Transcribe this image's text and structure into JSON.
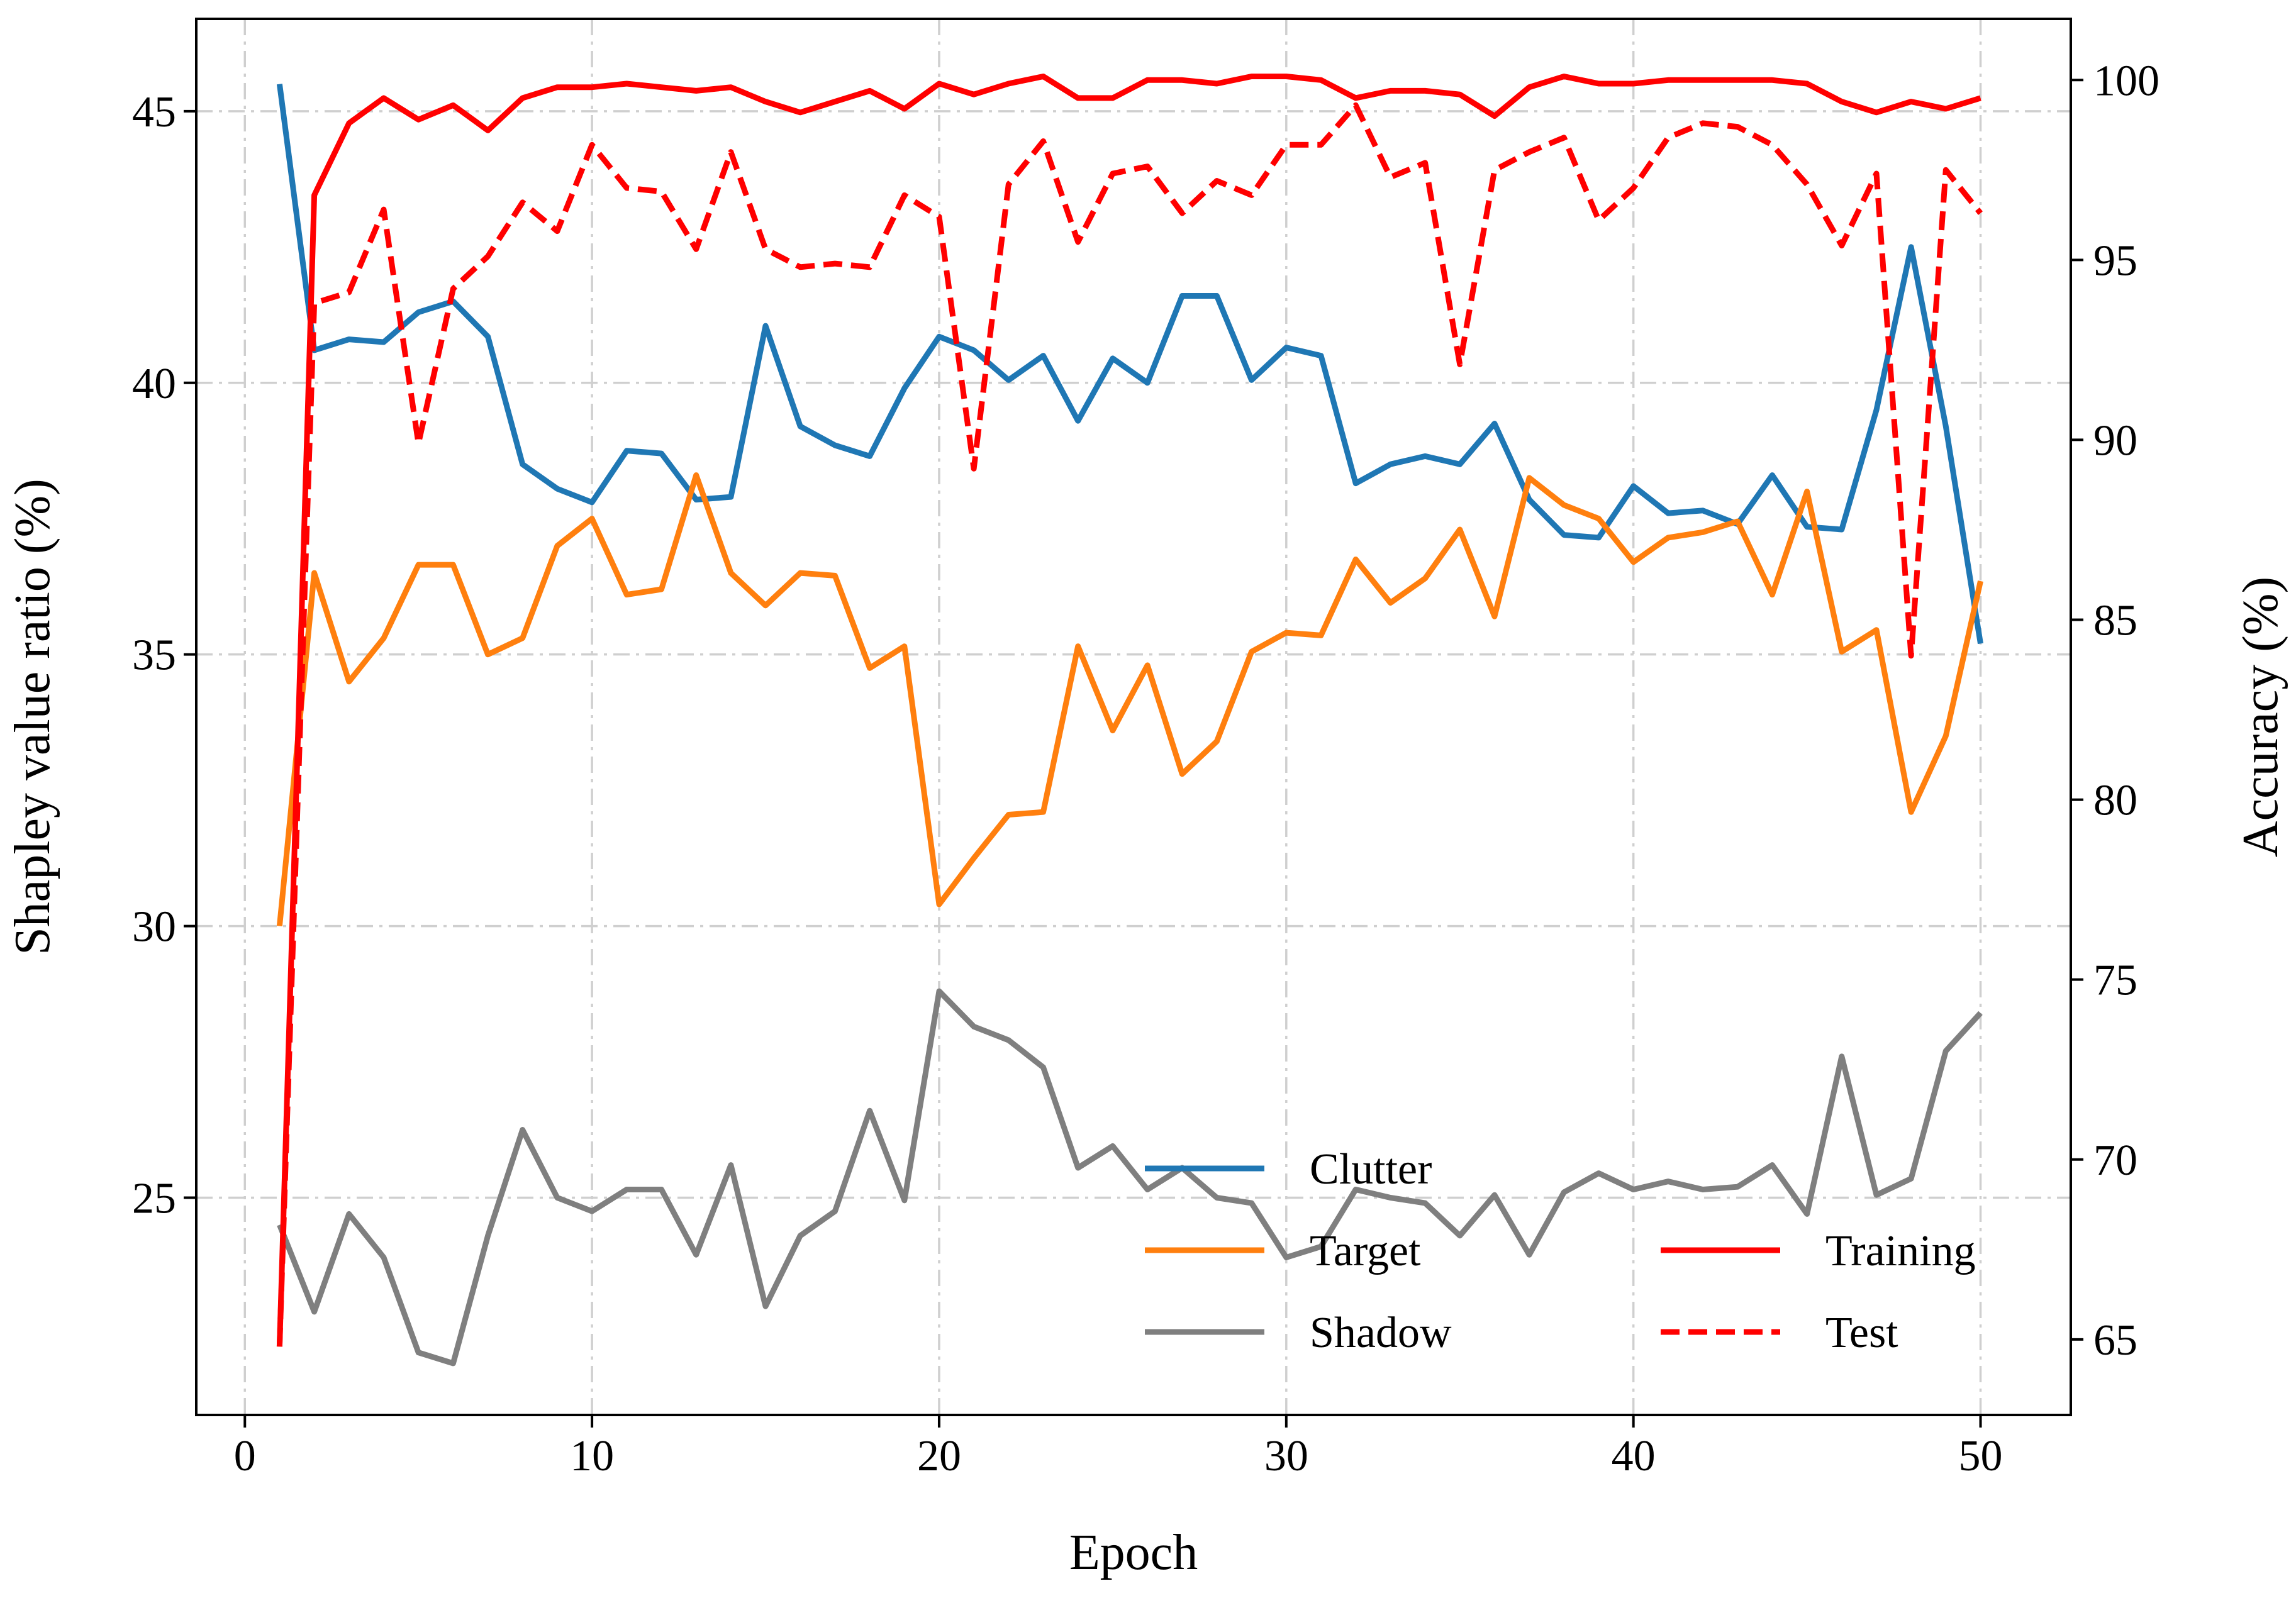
{
  "chart_data": {
    "type": "line",
    "xlabel": "Epoch",
    "ylabel_left": "Shapley value ratio (%)",
    "ylabel_right": "Accuracy (%)",
    "xlim": [
      -1.4,
      52.6
    ],
    "ylim_left": [
      21.0,
      46.7
    ],
    "ylim_right": [
      62.9,
      101.7
    ],
    "xticks": [
      0,
      10,
      20,
      30,
      40,
      50
    ],
    "yticks_left": [
      25,
      30,
      35,
      40,
      45
    ],
    "yticks_right": [
      65,
      70,
      75,
      80,
      85,
      90,
      95,
      100
    ],
    "grid": true,
    "legend_position": "lower-right",
    "x": [
      1,
      2,
      3,
      4,
      5,
      6,
      7,
      8,
      9,
      10,
      11,
      12,
      13,
      14,
      15,
      16,
      17,
      18,
      19,
      20,
      21,
      22,
      23,
      24,
      25,
      26,
      27,
      28,
      29,
      30,
      31,
      32,
      33,
      34,
      35,
      36,
      37,
      38,
      39,
      40,
      41,
      42,
      43,
      44,
      45,
      46,
      47,
      48,
      49,
      50
    ],
    "series": [
      {
        "name": "Clutter",
        "axis": "left",
        "color": "#1f77b4",
        "style": "solid",
        "values": [
          45.5,
          40.6,
          40.8,
          40.75,
          41.3,
          41.5,
          40.85,
          38.5,
          38.05,
          37.8,
          38.75,
          38.7,
          37.85,
          37.9,
          41.05,
          39.2,
          38.85,
          38.65,
          39.9,
          40.85,
          40.6,
          40.05,
          40.5,
          39.3,
          40.45,
          40.0,
          41.6,
          41.6,
          40.05,
          40.65,
          40.5,
          38.15,
          38.5,
          38.65,
          38.5,
          39.25,
          37.85,
          37.2,
          37.15,
          38.1,
          37.6,
          37.65,
          37.4,
          38.3,
          37.35,
          37.3,
          39.5,
          42.5,
          39.2,
          35.2
        ]
      },
      {
        "name": "Target",
        "axis": "left",
        "color": "#ff7f0e",
        "style": "solid",
        "values": [
          30.0,
          36.5,
          34.5,
          35.3,
          36.65,
          36.65,
          35.0,
          35.3,
          37.0,
          37.5,
          36.1,
          36.2,
          38.3,
          36.5,
          35.9,
          36.5,
          36.45,
          34.75,
          35.15,
          30.4,
          31.25,
          32.05,
          32.1,
          35.15,
          33.6,
          34.8,
          32.8,
          33.4,
          35.05,
          35.4,
          35.35,
          36.75,
          35.95,
          36.4,
          37.3,
          35.7,
          38.25,
          37.75,
          37.5,
          36.7,
          37.15,
          37.25,
          37.45,
          36.1,
          38.0,
          35.05,
          35.45,
          32.1,
          33.5,
          36.35
        ]
      },
      {
        "name": "Shadow",
        "axis": "left",
        "color": "#7f7f7f",
        "style": "solid",
        "values": [
          24.5,
          22.9,
          24.7,
          23.9,
          22.15,
          21.95,
          24.3,
          26.25,
          25.0,
          24.75,
          25.15,
          25.15,
          23.95,
          25.6,
          23.0,
          24.3,
          24.75,
          26.6,
          24.95,
          28.8,
          28.15,
          27.9,
          27.4,
          25.55,
          25.95,
          25.15,
          25.55,
          25.0,
          24.9,
          23.9,
          24.1,
          25.15,
          25.0,
          24.9,
          24.3,
          25.05,
          23.95,
          25.1,
          25.45,
          25.15,
          25.3,
          25.15,
          25.2,
          25.6,
          24.7,
          27.6,
          25.05,
          25.35,
          27.7,
          28.4
        ]
      },
      {
        "name": "Training",
        "axis": "right",
        "color": "#ff0000",
        "style": "solid",
        "values": [
          64.8,
          96.8,
          98.8,
          99.5,
          98.9,
          99.3,
          98.6,
          99.5,
          99.8,
          99.8,
          99.9,
          99.8,
          99.7,
          99.8,
          99.4,
          99.1,
          99.4,
          99.7,
          99.2,
          99.9,
          99.6,
          99.9,
          100.1,
          99.5,
          99.5,
          100.0,
          100.0,
          99.9,
          100.1,
          100.1,
          100.0,
          99.5,
          99.7,
          99.7,
          99.6,
          99.0,
          99.8,
          100.1,
          99.9,
          99.9,
          100.0,
          100.0,
          100.0,
          100.0,
          99.9,
          99.4,
          99.1,
          99.4,
          99.2,
          99.5
        ]
      },
      {
        "name": "Test",
        "axis": "right",
        "color": "#ff0000",
        "style": "dashed",
        "values": [
          64.8,
          93.8,
          94.1,
          96.4,
          89.9,
          94.2,
          95.1,
          96.6,
          95.8,
          98.2,
          97.0,
          96.9,
          95.3,
          98.0,
          95.3,
          94.8,
          94.9,
          94.8,
          96.8,
          96.2,
          89.2,
          97.1,
          98.3,
          95.5,
          97.4,
          97.6,
          96.3,
          97.2,
          96.8,
          98.2,
          98.2,
          99.3,
          97.3,
          97.7,
          92.1,
          97.5,
          98.0,
          98.4,
          96.1,
          97.0,
          98.4,
          98.8,
          98.7,
          98.2,
          97.1,
          95.4,
          97.4,
          84.0,
          97.5,
          96.3
        ]
      }
    ]
  }
}
